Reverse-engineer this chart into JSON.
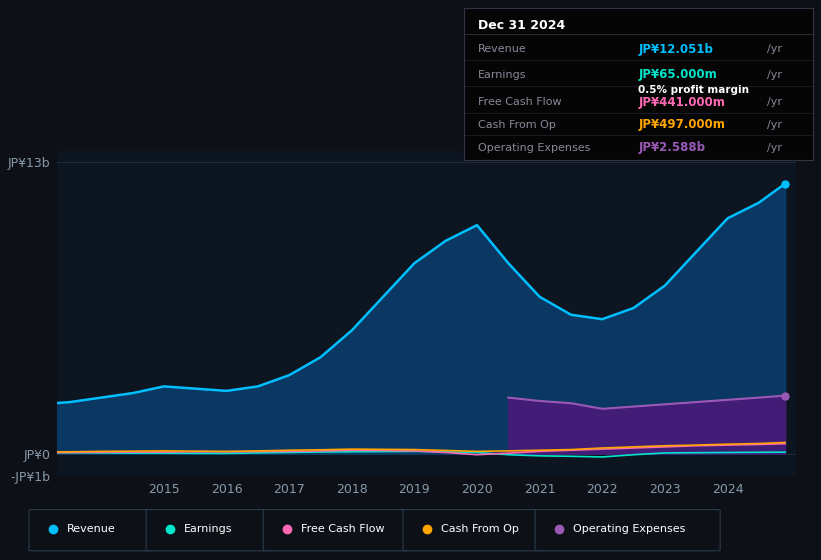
{
  "bg_color": "#0d1117",
  "plot_bg_color": "#0d1520",
  "grid_color": "#1e2d3d",
  "years": [
    2013.0,
    2013.5,
    2014.0,
    2014.5,
    2015.0,
    2015.5,
    2016.0,
    2016.5,
    2017.0,
    2017.5,
    2018.0,
    2018.5,
    2019.0,
    2019.5,
    2020.0,
    2020.5,
    2021.0,
    2021.5,
    2022.0,
    2022.5,
    2023.0,
    2023.5,
    2024.0,
    2024.5,
    2024.92
  ],
  "revenue": [
    2.2,
    2.3,
    2.5,
    2.7,
    3.0,
    2.9,
    2.8,
    3.0,
    3.5,
    4.3,
    5.5,
    7.0,
    8.5,
    9.5,
    10.2,
    8.5,
    7.0,
    6.2,
    6.0,
    6.5,
    7.5,
    9.0,
    10.5,
    11.2,
    12.051
  ],
  "earnings": [
    0.05,
    0.04,
    0.03,
    0.02,
    0.02,
    0.01,
    0.01,
    0.03,
    0.05,
    0.07,
    0.08,
    0.09,
    0.1,
    0.08,
    0.05,
    -0.05,
    -0.1,
    -0.12,
    -0.15,
    -0.05,
    0.03,
    0.04,
    0.05,
    0.06,
    0.065
  ],
  "free_cash_flow": [
    0.04,
    0.05,
    0.06,
    0.07,
    0.07,
    0.08,
    0.08,
    0.09,
    0.1,
    0.12,
    0.15,
    0.14,
    0.12,
    0.05,
    -0.05,
    0.02,
    0.1,
    0.15,
    0.2,
    0.25,
    0.3,
    0.35,
    0.38,
    0.41,
    0.441
  ],
  "cash_from_op": [
    0.07,
    0.08,
    0.1,
    0.11,
    0.12,
    0.11,
    0.1,
    0.12,
    0.15,
    0.17,
    0.2,
    0.19,
    0.18,
    0.14,
    0.1,
    0.12,
    0.15,
    0.18,
    0.25,
    0.3,
    0.35,
    0.38,
    0.42,
    0.45,
    0.497
  ],
  "op_expenses": [
    0.0,
    0.0,
    0.0,
    0.0,
    0.0,
    0.0,
    0.0,
    0.0,
    0.0,
    0.0,
    0.0,
    0.0,
    0.0,
    0.0,
    0.0,
    2.5,
    2.35,
    2.25,
    2.0,
    2.1,
    2.2,
    2.3,
    2.4,
    2.5,
    2.588
  ],
  "revenue_color": "#00bfff",
  "earnings_color": "#00e5cc",
  "free_cash_flow_color": "#ff69b4",
  "cash_from_op_color": "#ffa500",
  "op_expenses_color": "#9b59b6",
  "revenue_fill_color": "#0a3d6b",
  "op_expenses_fill_color": "#4a1a7a",
  "ylim": [
    -1.0,
    13.5
  ],
  "xlim": [
    2013.3,
    2025.1
  ],
  "ytick_vals": [
    -1,
    0,
    13
  ],
  "ytick_labels": [
    "-JP¥1b",
    "JP¥0",
    "JP¥13b"
  ],
  "xtick_years": [
    2015,
    2016,
    2017,
    2018,
    2019,
    2020,
    2021,
    2022,
    2023,
    2024
  ],
  "info_box": {
    "date": "Dec 31 2024",
    "revenue_label": "Revenue",
    "revenue_value": "JP¥12.051b",
    "earnings_label": "Earnings",
    "earnings_value": "JP¥65.000m",
    "profit_margin": "0.5% profit margin",
    "fcf_label": "Free Cash Flow",
    "fcf_value": "JP¥441.000m",
    "cfop_label": "Cash From Op",
    "cfop_value": "JP¥497.000m",
    "opex_label": "Operating Expenses",
    "opex_value": "JP¥2.588b"
  },
  "legend_items": [
    "Revenue",
    "Earnings",
    "Free Cash Flow",
    "Cash From Op",
    "Operating Expenses"
  ],
  "legend_colors": [
    "#00bfff",
    "#00e5cc",
    "#ff69b4",
    "#ffa500",
    "#9b59b6"
  ]
}
